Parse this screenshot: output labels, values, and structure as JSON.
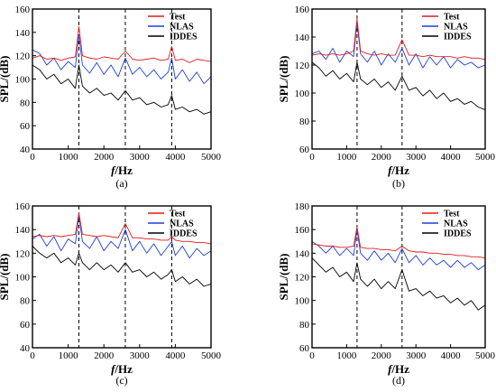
{
  "chart_data": [
    {
      "type": "line",
      "panel_label": "(a)",
      "xlabel": "f/Hz",
      "ylabel": "SPL/(dB)",
      "xlim": [
        0,
        5000
      ],
      "ylim": [
        40,
        160
      ],
      "xticks": [
        0,
        1000,
        2000,
        3000,
        4000,
        5000
      ],
      "yticks": [
        40,
        60,
        80,
        100,
        120,
        140,
        160
      ],
      "grid": false,
      "legend_position": "top-right",
      "dashed_vlines_x": [
        1300,
        2600,
        3900
      ],
      "series": [
        {
          "name": "Test",
          "color": "#e41a1c",
          "x": [
            0,
            200,
            400,
            600,
            800,
            1000,
            1200,
            1300,
            1400,
            1600,
            1800,
            2000,
            2200,
            2400,
            2600,
            2800,
            3000,
            3200,
            3400,
            3600,
            3800,
            3900,
            4000,
            4200,
            4400,
            4600,
            4800,
            5000
          ],
          "y": [
            118,
            120,
            117,
            118,
            116,
            118,
            119,
            145,
            120,
            118,
            117,
            119,
            118,
            117,
            124,
            117,
            116,
            117,
            118,
            116,
            117,
            128,
            116,
            117,
            114,
            117,
            116,
            115
          ]
        },
        {
          "name": "NLAS",
          "color": "#1f3fe0",
          "x": [
            0,
            200,
            400,
            600,
            800,
            1000,
            1200,
            1300,
            1400,
            1600,
            1800,
            2000,
            2200,
            2400,
            2600,
            2800,
            3000,
            3200,
            3400,
            3600,
            3800,
            3900,
            4000,
            4200,
            4400,
            4600,
            4800,
            5000
          ],
          "y": [
            125,
            122,
            112,
            118,
            108,
            115,
            110,
            138,
            112,
            105,
            114,
            104,
            112,
            102,
            118,
            104,
            110,
            102,
            108,
            100,
            106,
            118,
            100,
            108,
            98,
            106,
            96,
            102
          ]
        },
        {
          "name": "IDDES",
          "color": "#000000",
          "x": [
            0,
            200,
            400,
            600,
            800,
            1000,
            1200,
            1300,
            1400,
            1600,
            1800,
            2000,
            2200,
            2400,
            2600,
            2800,
            3000,
            3200,
            3400,
            3600,
            3800,
            3900,
            4000,
            4200,
            4400,
            4600,
            4800,
            5000
          ],
          "y": [
            112,
            108,
            100,
            104,
            96,
            100,
            92,
            112,
            94,
            88,
            92,
            86,
            88,
            82,
            90,
            82,
            84,
            78,
            80,
            76,
            78,
            86,
            74,
            76,
            72,
            74,
            70,
            72
          ]
        }
      ]
    },
    {
      "type": "line",
      "panel_label": "(b)",
      "xlabel": "f/Hz",
      "ylabel": "SPL/(dB)",
      "xlim": [
        0,
        5000
      ],
      "ylim": [
        60,
        160
      ],
      "xticks": [
        0,
        1000,
        2000,
        3000,
        4000,
        5000
      ],
      "yticks": [
        60,
        80,
        100,
        120,
        140,
        160
      ],
      "grid": false,
      "legend_position": "top-right",
      "dashed_vlines_x": [
        1300,
        2600
      ],
      "series": [
        {
          "name": "Test",
          "color": "#e41a1c",
          "x": [
            0,
            200,
            400,
            600,
            800,
            1000,
            1200,
            1300,
            1400,
            1600,
            1800,
            2000,
            2200,
            2400,
            2600,
            2800,
            3000,
            3200,
            3400,
            3600,
            3800,
            4000,
            4200,
            4400,
            4600,
            4800,
            5000
          ],
          "y": [
            127,
            128,
            127,
            128,
            127,
            128,
            130,
            153,
            130,
            128,
            127,
            128,
            127,
            127,
            138,
            127,
            127,
            126,
            127,
            126,
            126,
            126,
            125,
            126,
            125,
            125,
            124
          ]
        },
        {
          "name": "NLAS",
          "color": "#1f3fe0",
          "x": [
            0,
            200,
            400,
            600,
            800,
            1000,
            1200,
            1300,
            1400,
            1600,
            1800,
            2000,
            2200,
            2400,
            2600,
            2800,
            3000,
            3200,
            3400,
            3600,
            3800,
            4000,
            4200,
            4400,
            4600,
            4800,
            5000
          ],
          "y": [
            128,
            130,
            124,
            132,
            122,
            130,
            126,
            150,
            128,
            122,
            130,
            120,
            128,
            122,
            132,
            120,
            128,
            118,
            126,
            120,
            126,
            118,
            124,
            120,
            122,
            118,
            120
          ]
        },
        {
          "name": "IDDES",
          "color": "#000000",
          "x": [
            0,
            200,
            400,
            600,
            800,
            1000,
            1200,
            1300,
            1400,
            1600,
            1800,
            2000,
            2200,
            2400,
            2600,
            2800,
            3000,
            3200,
            3400,
            3600,
            3800,
            4000,
            4200,
            4400,
            4600,
            4800,
            5000
          ],
          "y": [
            122,
            118,
            112,
            116,
            110,
            114,
            108,
            122,
            110,
            106,
            110,
            104,
            108,
            102,
            112,
            102,
            104,
            98,
            102,
            96,
            100,
            94,
            96,
            92,
            94,
            90,
            88
          ]
        }
      ]
    },
    {
      "type": "line",
      "panel_label": "(c)",
      "xlabel": "f/Hz",
      "ylabel": "SPL/(dB)",
      "xlim": [
        0,
        5000
      ],
      "ylim": [
        40,
        160
      ],
      "xticks": [
        0,
        1000,
        2000,
        3000,
        4000,
        5000
      ],
      "yticks": [
        40,
        60,
        80,
        100,
        120,
        140,
        160
      ],
      "grid": false,
      "legend_position": "top-right",
      "dashed_vlines_x": [
        1300,
        2600,
        3900
      ],
      "series": [
        {
          "name": "Test",
          "color": "#e41a1c",
          "x": [
            0,
            200,
            400,
            600,
            800,
            1000,
            1200,
            1300,
            1400,
            1600,
            1800,
            2000,
            2200,
            2400,
            2600,
            2800,
            3000,
            3200,
            3400,
            3600,
            3800,
            3900,
            4000,
            4200,
            4400,
            4600,
            4800,
            5000
          ],
          "y": [
            134,
            135,
            134,
            135,
            134,
            135,
            136,
            154,
            136,
            135,
            134,
            135,
            134,
            133,
            145,
            133,
            133,
            132,
            132,
            131,
            131,
            134,
            131,
            130,
            130,
            129,
            129,
            128
          ]
        },
        {
          "name": "NLAS",
          "color": "#1f3fe0",
          "x": [
            0,
            200,
            400,
            600,
            800,
            1000,
            1200,
            1300,
            1400,
            1600,
            1800,
            2000,
            2200,
            2400,
            2600,
            2800,
            3000,
            3200,
            3400,
            3600,
            3800,
            3900,
            4000,
            4200,
            4400,
            4600,
            4800,
            5000
          ],
          "y": [
            132,
            136,
            126,
            134,
            122,
            132,
            128,
            152,
            130,
            124,
            134,
            122,
            130,
            124,
            140,
            122,
            130,
            120,
            128,
            118,
            126,
            130,
            118,
            126,
            116,
            124,
            118,
            122
          ]
        },
        {
          "name": "IDDES",
          "color": "#000000",
          "x": [
            0,
            200,
            400,
            600,
            800,
            1000,
            1200,
            1300,
            1400,
            1600,
            1800,
            2000,
            2200,
            2400,
            2600,
            2800,
            3000,
            3200,
            3400,
            3600,
            3800,
            3900,
            4000,
            4200,
            4400,
            4600,
            4800,
            5000
          ],
          "y": [
            126,
            120,
            116,
            120,
            112,
            116,
            110,
            120,
            112,
            106,
            112,
            106,
            110,
            104,
            112,
            104,
            106,
            100,
            104,
            98,
            102,
            106,
            96,
            100,
            94,
            98,
            92,
            94
          ]
        }
      ]
    },
    {
      "type": "line",
      "panel_label": "(d)",
      "xlabel": "f/Hz",
      "ylabel": "SPL/(dB)",
      "xlim": [
        0,
        5000
      ],
      "ylim": [
        60,
        180
      ],
      "xticks": [
        0,
        1000,
        2000,
        3000,
        4000,
        5000
      ],
      "yticks": [
        60,
        80,
        100,
        120,
        140,
        160,
        180
      ],
      "grid": false,
      "legend_position": "top-right",
      "dashed_vlines_x": [
        1300,
        2600
      ],
      "series": [
        {
          "name": "Test",
          "color": "#e41a1c",
          "x": [
            0,
            200,
            400,
            600,
            800,
            1000,
            1200,
            1300,
            1400,
            1600,
            1800,
            2000,
            2200,
            2400,
            2600,
            2800,
            3000,
            3200,
            3400,
            3600,
            3800,
            4000,
            4200,
            4400,
            4600,
            4800,
            5000
          ],
          "y": [
            148,
            147,
            146,
            146,
            145,
            145,
            146,
            162,
            145,
            144,
            144,
            143,
            143,
            142,
            146,
            142,
            141,
            141,
            140,
            140,
            139,
            139,
            138,
            138,
            137,
            137,
            136
          ]
        },
        {
          "name": "NLAS",
          "color": "#1f3fe0",
          "x": [
            0,
            200,
            400,
            600,
            800,
            1000,
            1200,
            1300,
            1400,
            1600,
            1800,
            2000,
            2200,
            2400,
            2600,
            2800,
            3000,
            3200,
            3400,
            3600,
            3800,
            4000,
            4200,
            4400,
            4600,
            4800,
            5000
          ],
          "y": [
            150,
            146,
            140,
            146,
            138,
            144,
            138,
            160,
            140,
            134,
            142,
            134,
            140,
            132,
            144,
            132,
            138,
            130,
            136,
            130,
            134,
            128,
            134,
            128,
            132,
            126,
            130
          ]
        },
        {
          "name": "IDDES",
          "color": "#000000",
          "x": [
            0,
            200,
            400,
            600,
            800,
            1000,
            1200,
            1300,
            1400,
            1600,
            1800,
            2000,
            2200,
            2400,
            2600,
            2800,
            3000,
            3200,
            3400,
            3600,
            3800,
            4000,
            4200,
            4400,
            4600,
            4800,
            5000
          ],
          "y": [
            136,
            130,
            124,
            128,
            120,
            124,
            116,
            132,
            118,
            112,
            118,
            110,
            116,
            110,
            126,
            108,
            110,
            104,
            108,
            102,
            104,
            98,
            102,
            96,
            100,
            92,
            96
          ]
        }
      ]
    }
  ]
}
